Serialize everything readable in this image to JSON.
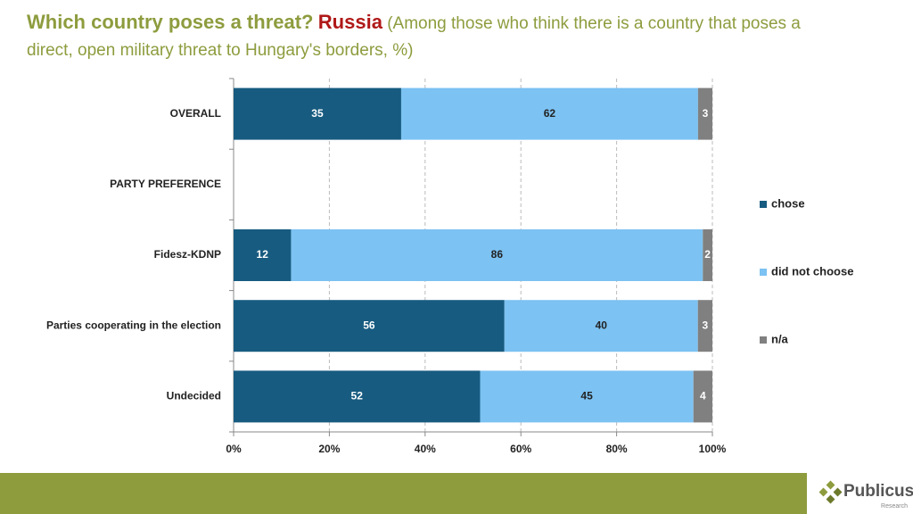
{
  "chart_data": {
    "type": "stacked_bar_horizontal",
    "title": "Which country poses a threat?",
    "highlight": "Russia",
    "subtitle": "(Among those who think there is a country that poses a direct, open military threat to Hungary's borders, %)",
    "categories": [
      "OVERALL",
      "PARTY PREFERENCE",
      "Fidesz-KDNP",
      "Parties cooperating  in the election",
      "Undecided"
    ],
    "series": [
      {
        "name": "chose",
        "color": "#175b80",
        "values": [
          35,
          null,
          12,
          56,
          52
        ]
      },
      {
        "name": "did not choose",
        "color": "#7cc2f2",
        "values": [
          62,
          null,
          86,
          40,
          45
        ]
      },
      {
        "name": "n/a",
        "color": "#808080",
        "values": [
          3,
          null,
          2,
          3,
          4
        ]
      }
    ],
    "xlim": [
      0,
      100
    ],
    "xticks": [
      {
        "value": 0,
        "label": "0%"
      },
      {
        "value": 20,
        "label": "20%"
      },
      {
        "value": 40,
        "label": "40%"
      },
      {
        "value": 60,
        "label": "60%"
      },
      {
        "value": 80,
        "label": "80%"
      },
      {
        "value": 100,
        "label": "100%"
      }
    ],
    "grid": true,
    "legend": "right"
  },
  "footer": {
    "logo": "Publicus",
    "sublogo": "Research"
  }
}
